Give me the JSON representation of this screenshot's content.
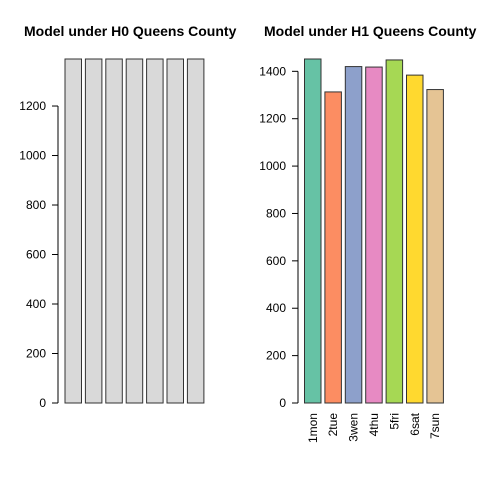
{
  "chart_data": [
    {
      "type": "bar",
      "title": "Model under H0 Queens County",
      "categories": [
        "1mon",
        "2tue",
        "3wen",
        "4thu",
        "5fri",
        "6sat",
        "7sun"
      ],
      "values": [
        1390,
        1390,
        1390,
        1390,
        1390,
        1390,
        1390
      ],
      "ylim": [
        0,
        1390
      ],
      "yticks": [
        0,
        200,
        400,
        600,
        800,
        1000,
        1200
      ],
      "show_category_labels": false,
      "colors": [
        "#d9d9d9",
        "#d9d9d9",
        "#d9d9d9",
        "#d9d9d9",
        "#d9d9d9",
        "#d9d9d9",
        "#d9d9d9"
      ],
      "xlabel": "",
      "ylabel": "",
      "grid": false
    },
    {
      "type": "bar",
      "title": "Model under H1 Queens County",
      "categories": [
        "1mon",
        "2tue",
        "3wen",
        "4thu",
        "5fri",
        "6sat",
        "7sun"
      ],
      "values": [
        1452,
        1313,
        1420,
        1418,
        1448,
        1384,
        1323
      ],
      "ylim": [
        0,
        1452
      ],
      "yticks": [
        0,
        200,
        400,
        600,
        800,
        1000,
        1200,
        1400
      ],
      "show_category_labels": true,
      "colors": [
        "#66c2a5",
        "#fc8d62",
        "#8da0cb",
        "#e78ac3",
        "#a6d854",
        "#ffd92f",
        "#e5c494"
      ],
      "xlabel": "",
      "ylabel": "",
      "grid": false
    }
  ]
}
